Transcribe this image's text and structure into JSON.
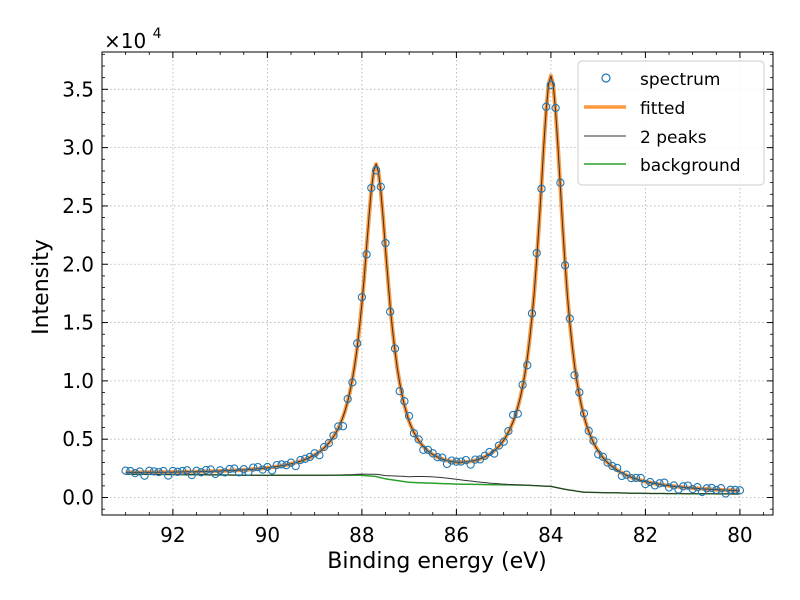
{
  "chart_data": {
    "type": "scatter",
    "xlabel": "Binding energy (eV)",
    "ylabel": "Intensity",
    "y_multiplier": {
      "base": "×10",
      "exponent": "4"
    },
    "xlim": [
      93.5,
      79.3
    ],
    "ylim": [
      -1500,
      38200
    ],
    "x_reversed": true,
    "grid": true,
    "legend_position": "top-right",
    "x_ticks": [
      92,
      90,
      88,
      86,
      84,
      82,
      80
    ],
    "x_tick_labels": [
      "92",
      "90",
      "88",
      "86",
      "84",
      "82",
      "80"
    ],
    "y_ticks": [
      0,
      5000,
      10000,
      15000,
      20000,
      25000,
      30000,
      35000
    ],
    "y_tick_labels": [
      "0.0",
      "0.5",
      "1.0",
      "1.5",
      "2.0",
      "2.5",
      "3.0",
      "3.5"
    ],
    "x_range": [
      80,
      93
    ],
    "x_step": 0.05,
    "model": {
      "peaks": [
        {
          "center": 84.0,
          "height": 35000,
          "hwhm": 0.33
        },
        {
          "center": 87.7,
          "height": 26500,
          "hwhm": 0.33
        }
      ],
      "background": [
        [
          80.0,
          300
        ],
        [
          82.0,
          350
        ],
        [
          83.3,
          450
        ],
        [
          83.7,
          700
        ],
        [
          84.0,
          950
        ],
        [
          84.5,
          1050
        ],
        [
          86.0,
          1150
        ],
        [
          87.0,
          1300
        ],
        [
          87.5,
          1600
        ],
        [
          87.7,
          1800
        ],
        [
          88.0,
          1900
        ],
        [
          90.0,
          1900
        ],
        [
          93.0,
          2000
        ]
      ]
    },
    "series": [
      {
        "name": "spectrum",
        "color": "#1f77b4",
        "marker": "circle-open"
      },
      {
        "name": "fitted",
        "color": "#ff7f0e"
      },
      {
        "name": "2 peaks",
        "color": "#333333"
      },
      {
        "name": "background",
        "color": "#2ca02c"
      }
    ]
  }
}
